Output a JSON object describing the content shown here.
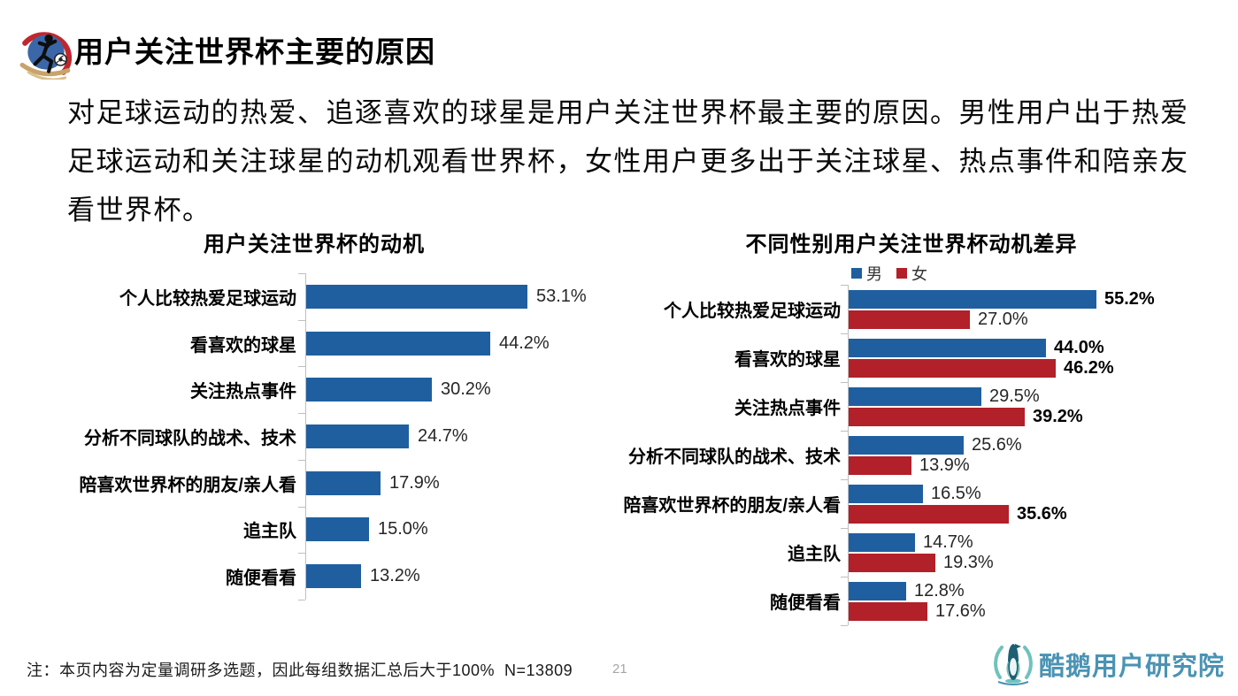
{
  "page": {
    "title": "用户关注世界杯主要的原因",
    "description_lines": [
      "对足球运动的热爱、追逐喜欢的球星是用户关注世界杯最主要的原因。男性用户出于热爱",
      "足球运动和关注球星的动机观看世界杯，女性用户更多出于关注球星、热点事件和陪亲友",
      "看世界杯。"
    ],
    "page_number": "21"
  },
  "footer": {
    "note": "注：本页内容为定量调研多选题，因此每组数据汇总后大于100%  N=13809",
    "logo_text": "酷鹅用户研究院"
  },
  "colors": {
    "male_blue": "#1F5FA0",
    "female_red": "#B22029",
    "axis_gray": "#BFBFBF",
    "logo_teal": "#4A93B4",
    "page_number_gray": "#A6A6A6"
  },
  "chart_data": [
    {
      "type": "bar",
      "orientation": "horizontal",
      "title": "用户关注世界杯的动机",
      "categories": [
        "个人比较热爱足球运动",
        "看喜欢的球星",
        "关注热点事件",
        "分析不同球队的战术、技术",
        "陪喜欢世界杯的朋友/亲人看",
        "追主队",
        "随便看看"
      ],
      "values": [
        53.1,
        44.2,
        30.2,
        24.7,
        17.9,
        15.0,
        13.2
      ],
      "labels": [
        "53.1%",
        "44.2%",
        "30.2%",
        "24.7%",
        "17.9%",
        "15.0%",
        "13.2%"
      ],
      "bar_color": "#1F5FA0",
      "xlim": [
        0,
        60
      ],
      "grid": false,
      "legend": "none"
    },
    {
      "type": "bar",
      "orientation": "horizontal",
      "title": "不同性别用户关注世界杯动机差异",
      "categories": [
        "个人比较热爱足球运动",
        "看喜欢的球星",
        "关注热点事件",
        "分析不同球队的战术、技术",
        "陪喜欢世界杯的朋友/亲人看",
        "追主队",
        "随便看看"
      ],
      "series": [
        {
          "name": "男",
          "color": "#1F5FA0",
          "values": [
            55.2,
            44.0,
            29.5,
            25.6,
            16.5,
            14.7,
            12.8
          ],
          "labels": [
            "55.2%",
            "44.0%",
            "29.5%",
            "25.6%",
            "16.5%",
            "14.7%",
            "12.8%"
          ],
          "bold_labels": [
            true,
            true,
            false,
            false,
            false,
            false,
            false
          ]
        },
        {
          "name": "女",
          "color": "#B22029",
          "values": [
            27.0,
            46.2,
            39.2,
            13.9,
            35.6,
            19.3,
            17.6
          ],
          "labels": [
            "27.0%",
            "46.2%",
            "39.2%",
            "13.9%",
            "35.6%",
            "19.3%",
            "17.6%"
          ],
          "bold_labels": [
            false,
            true,
            true,
            false,
            true,
            false,
            false
          ]
        }
      ],
      "legend_position": "top",
      "xlim": [
        0,
        60
      ],
      "grid": false
    }
  ]
}
